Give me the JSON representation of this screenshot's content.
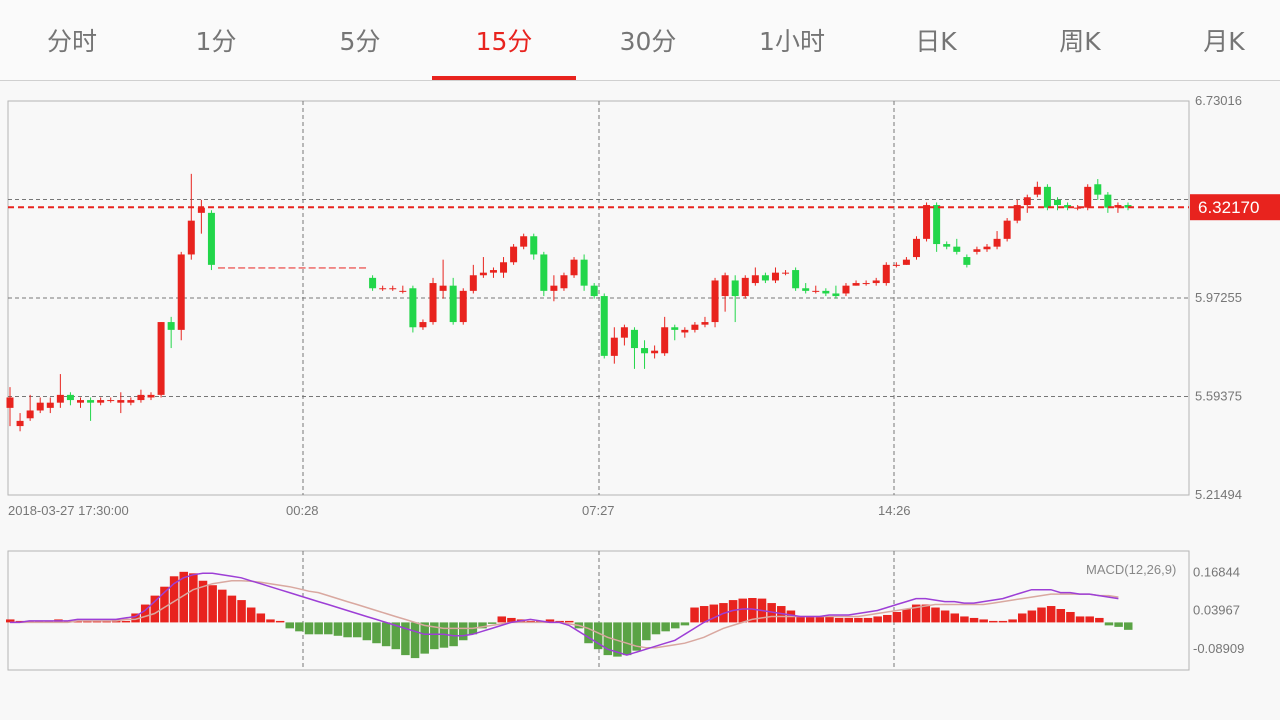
{
  "tabs": [
    {
      "label": "分时",
      "active": false
    },
    {
      "label": "1分",
      "active": false
    },
    {
      "label": "5分",
      "active": false
    },
    {
      "label": "15分",
      "active": true
    },
    {
      "label": "30分",
      "active": false
    },
    {
      "label": "1小时",
      "active": false
    },
    {
      "label": "日K",
      "active": false
    },
    {
      "label": "周K",
      "active": false
    },
    {
      "label": "月K",
      "active": false
    }
  ],
  "colors": {
    "up": "#e8231e",
    "down": "#22d64a",
    "macd_down": "#5aa345",
    "dif": "#9d3fd6",
    "dea": "#d9a8a0",
    "accent": "#e8231e"
  },
  "chart_data": [
    {
      "type": "candlestick",
      "ylim": [
        5.21494,
        6.73016
      ],
      "y_ticks": [
        "6.73016",
        "5.97255",
        "5.59375",
        "5.21494"
      ],
      "current_price_label": "6.32170",
      "current_price": 6.3217,
      "x_tick_labels": [
        "2018-03-27 17:30:00",
        "00:28",
        "07:27",
        "14:26"
      ],
      "candles": [
        [
          5.55,
          5.59,
          5.48,
          5.63
        ],
        [
          5.48,
          5.5,
          5.46,
          5.53
        ],
        [
          5.51,
          5.54,
          5.5,
          5.6
        ],
        [
          5.54,
          5.57,
          5.53,
          5.59
        ],
        [
          5.55,
          5.57,
          5.53,
          5.59
        ],
        [
          5.57,
          5.6,
          5.55,
          5.68
        ],
        [
          5.6,
          5.58,
          5.56,
          5.61
        ],
        [
          5.57,
          5.58,
          5.55,
          5.59
        ],
        [
          5.58,
          5.57,
          5.5,
          5.59
        ],
        [
          5.57,
          5.58,
          5.56,
          5.59
        ],
        [
          5.58,
          5.58,
          5.57,
          5.59
        ],
        [
          5.57,
          5.58,
          5.53,
          5.61
        ],
        [
          5.57,
          5.58,
          5.56,
          5.59
        ],
        [
          5.58,
          5.6,
          5.57,
          5.62
        ],
        [
          5.59,
          5.6,
          5.58,
          5.61
        ],
        [
          5.6,
          5.88,
          5.59,
          5.88
        ],
        [
          5.88,
          5.85,
          5.78,
          5.9
        ],
        [
          5.85,
          6.14,
          5.81,
          6.15
        ],
        [
          6.14,
          6.27,
          6.12,
          6.45
        ],
        [
          6.3,
          6.32,
          6.22,
          6.35
        ],
        [
          6.3,
          6.1,
          6.08,
          6.31
        ],
        [
          6.09,
          6.09,
          6.09,
          6.09
        ],
        [
          6.09,
          6.09,
          6.09,
          6.09
        ],
        [
          6.09,
          6.09,
          6.09,
          6.09
        ],
        [
          6.09,
          6.09,
          6.09,
          6.09
        ],
        [
          6.09,
          6.09,
          6.09,
          6.09
        ],
        [
          6.09,
          6.09,
          6.09,
          6.09
        ],
        [
          6.09,
          6.09,
          6.09,
          6.09
        ],
        [
          6.09,
          6.09,
          6.09,
          6.09
        ],
        [
          6.09,
          6.09,
          6.09,
          6.09
        ],
        [
          6.09,
          6.09,
          6.09,
          6.09
        ],
        [
          6.09,
          6.09,
          6.09,
          6.09
        ],
        [
          6.09,
          6.09,
          6.09,
          6.09
        ],
        [
          6.09,
          6.09,
          6.09,
          6.09
        ],
        [
          6.09,
          6.09,
          6.09,
          6.09
        ],
        [
          6.09,
          6.09,
          6.09,
          6.09
        ],
        [
          6.05,
          6.01,
          6.0,
          6.06
        ],
        [
          6.01,
          6.01,
          6.0,
          6.02
        ],
        [
          6.01,
          6.01,
          6.0,
          6.02
        ],
        [
          6.0,
          6.0,
          5.99,
          6.02
        ],
        [
          6.01,
          5.86,
          5.84,
          6.02
        ],
        [
          5.86,
          5.88,
          5.85,
          5.89
        ],
        [
          5.88,
          6.03,
          5.87,
          6.05
        ],
        [
          6.0,
          6.02,
          5.97,
          6.12
        ],
        [
          6.02,
          5.88,
          5.87,
          6.05
        ],
        [
          5.88,
          6.0,
          5.87,
          6.01
        ],
        [
          6.0,
          6.06,
          5.99,
          6.1
        ],
        [
          6.06,
          6.07,
          6.05,
          6.13
        ],
        [
          6.07,
          6.08,
          6.05,
          6.09
        ],
        [
          6.07,
          6.11,
          6.05,
          6.13
        ],
        [
          6.11,
          6.17,
          6.1,
          6.18
        ],
        [
          6.17,
          6.21,
          6.16,
          6.22
        ],
        [
          6.21,
          6.14,
          6.12,
          6.22
        ],
        [
          6.14,
          6.0,
          5.98,
          6.15
        ],
        [
          6.0,
          6.02,
          5.96,
          6.06
        ],
        [
          6.01,
          6.06,
          6.0,
          6.07
        ],
        [
          6.06,
          6.12,
          6.05,
          6.13
        ],
        [
          6.12,
          6.02,
          6.0,
          6.14
        ],
        [
          6.02,
          5.98,
          5.97,
          6.03
        ],
        [
          5.98,
          5.75,
          5.74,
          5.99
        ],
        [
          5.75,
          5.82,
          5.72,
          5.86
        ],
        [
          5.82,
          5.86,
          5.79,
          5.87
        ],
        [
          5.85,
          5.78,
          5.7,
          5.86
        ],
        [
          5.78,
          5.76,
          5.7,
          5.81
        ],
        [
          5.76,
          5.77,
          5.74,
          5.79
        ],
        [
          5.76,
          5.86,
          5.75,
          5.9
        ],
        [
          5.86,
          5.85,
          5.81,
          5.87
        ],
        [
          5.84,
          5.85,
          5.82,
          5.86
        ],
        [
          5.85,
          5.87,
          5.84,
          5.88
        ],
        [
          5.87,
          5.88,
          5.86,
          5.9
        ],
        [
          5.88,
          6.04,
          5.86,
          6.05
        ],
        [
          5.98,
          6.06,
          5.92,
          6.07
        ],
        [
          6.04,
          5.98,
          5.88,
          6.06
        ],
        [
          5.98,
          6.05,
          5.97,
          6.06
        ],
        [
          6.03,
          6.06,
          6.02,
          6.09
        ],
        [
          6.06,
          6.04,
          6.03,
          6.07
        ],
        [
          6.04,
          6.07,
          6.03,
          6.09
        ],
        [
          6.07,
          6.07,
          6.06,
          6.08
        ],
        [
          6.08,
          6.01,
          6.0,
          6.09
        ],
        [
          6.01,
          6.0,
          5.99,
          6.03
        ],
        [
          6.0,
          6.0,
          5.99,
          6.02
        ],
        [
          6.0,
          5.99,
          5.98,
          6.01
        ],
        [
          5.99,
          5.98,
          5.97,
          6.02
        ],
        [
          5.99,
          6.02,
          5.98,
          6.03
        ],
        [
          6.02,
          6.03,
          6.02,
          6.04
        ],
        [
          6.03,
          6.03,
          6.02,
          6.04
        ],
        [
          6.03,
          6.04,
          6.02,
          6.05
        ],
        [
          6.03,
          6.1,
          6.02,
          6.11
        ],
        [
          6.1,
          6.1,
          6.09,
          6.11
        ],
        [
          6.1,
          6.12,
          6.1,
          6.13
        ],
        [
          6.13,
          6.2,
          6.12,
          6.21
        ],
        [
          6.2,
          6.33,
          6.19,
          6.34
        ],
        [
          6.33,
          6.18,
          6.15,
          6.34
        ],
        [
          6.18,
          6.17,
          6.16,
          6.19
        ],
        [
          6.17,
          6.15,
          6.14,
          6.2
        ],
        [
          6.13,
          6.1,
          6.09,
          6.14
        ],
        [
          6.15,
          6.16,
          6.14,
          6.17
        ],
        [
          6.16,
          6.17,
          6.15,
          6.18
        ],
        [
          6.17,
          6.2,
          6.16,
          6.23
        ],
        [
          6.2,
          6.27,
          6.19,
          6.28
        ],
        [
          6.27,
          6.33,
          6.26,
          6.35
        ],
        [
          6.33,
          6.36,
          6.3,
          6.37
        ],
        [
          6.37,
          6.4,
          6.36,
          6.42
        ],
        [
          6.4,
          6.32,
          6.31,
          6.41
        ],
        [
          6.35,
          6.33,
          6.31,
          6.36
        ],
        [
          6.33,
          6.32,
          6.31,
          6.34
        ],
        [
          6.32,
          6.32,
          6.31,
          6.33
        ],
        [
          6.32,
          6.4,
          6.31,
          6.41
        ],
        [
          6.41,
          6.37,
          6.35,
          6.43
        ],
        [
          6.37,
          6.32,
          6.3,
          6.38
        ],
        [
          6.32,
          6.33,
          6.3,
          6.34
        ],
        [
          6.33,
          6.32,
          6.31,
          6.34
        ]
      ]
    },
    {
      "type": "bar",
      "title": "MACD(12,26,9)",
      "ylim": [
        -0.16,
        0.24
      ],
      "y_ticks": [
        "0.16844",
        "0.03967",
        "-0.08909"
      ],
      "histogram": [
        0.01,
        0.005,
        0.005,
        0.005,
        0.005,
        0.01,
        0.005,
        0.005,
        0.005,
        0.005,
        0.005,
        0.01,
        0.005,
        0.03,
        0.06,
        0.09,
        0.12,
        0.155,
        0.17,
        0.165,
        0.14,
        0.125,
        0.11,
        0.09,
        0.075,
        0.05,
        0.03,
        0.01,
        0.005,
        -0.02,
        -0.03,
        -0.04,
        -0.04,
        -0.04,
        -0.045,
        -0.05,
        -0.05,
        -0.06,
        -0.07,
        -0.08,
        -0.09,
        -0.11,
        -0.12,
        -0.105,
        -0.09,
        -0.085,
        -0.08,
        -0.06,
        -0.04,
        -0.02,
        -0.005,
        0.02,
        0.015,
        0.01,
        0.005,
        0.005,
        0.01,
        0.005,
        0.005,
        -0.02,
        -0.07,
        -0.09,
        -0.11,
        -0.115,
        -0.11,
        -0.095,
        -0.06,
        -0.04,
        -0.03,
        -0.02,
        -0.01,
        0.05,
        0.055,
        0.06,
        0.065,
        0.075,
        0.08,
        0.082,
        0.08,
        0.065,
        0.055,
        0.04,
        0.02,
        0.02,
        0.02,
        0.02,
        0.015,
        0.015,
        0.015,
        0.015,
        0.02,
        0.025,
        0.035,
        0.045,
        0.06,
        0.06,
        0.05,
        0.04,
        0.03,
        0.02,
        0.015,
        0.01,
        0.005,
        0.005,
        0.01,
        0.03,
        0.04,
        0.05,
        0.055,
        0.045,
        0.035,
        0.02,
        0.02,
        0.015,
        -0.01,
        -0.015,
        -0.025
      ],
      "dif": [
        0.0,
        0.0,
        0.005,
        0.005,
        0.005,
        0.005,
        0.005,
        0.01,
        0.01,
        0.01,
        0.01,
        0.01,
        0.015,
        0.02,
        0.04,
        0.07,
        0.1,
        0.13,
        0.15,
        0.16,
        0.165,
        0.165,
        0.16,
        0.155,
        0.15,
        0.14,
        0.13,
        0.12,
        0.11,
        0.1,
        0.09,
        0.08,
        0.07,
        0.06,
        0.05,
        0.04,
        0.03,
        0.02,
        0.01,
        0.0,
        -0.01,
        -0.02,
        -0.03,
        -0.04,
        -0.04,
        -0.04,
        -0.045,
        -0.045,
        -0.04,
        -0.03,
        -0.02,
        -0.01,
        0.0,
        0.005,
        0.01,
        0.005,
        0.0,
        0.0,
        -0.01,
        -0.03,
        -0.05,
        -0.07,
        -0.09,
        -0.1,
        -0.11,
        -0.1,
        -0.09,
        -0.08,
        -0.07,
        -0.06,
        -0.04,
        -0.02,
        0.0,
        0.015,
        0.03,
        0.04,
        0.045,
        0.045,
        0.04,
        0.035,
        0.03,
        0.025,
        0.02,
        0.02,
        0.02,
        0.025,
        0.025,
        0.025,
        0.03,
        0.035,
        0.04,
        0.05,
        0.06,
        0.07,
        0.08,
        0.08,
        0.075,
        0.07,
        0.07,
        0.065,
        0.065,
        0.07,
        0.075,
        0.08,
        0.09,
        0.1,
        0.11,
        0.11,
        0.11,
        0.1,
        0.1,
        0.095,
        0.095,
        0.09,
        0.085,
        0.08
      ],
      "dea": [
        0.0,
        0.0,
        0.0,
        0.0,
        0.0,
        0.0,
        0.0,
        0.005,
        0.005,
        0.005,
        0.005,
        0.005,
        0.01,
        0.01,
        0.02,
        0.03,
        0.05,
        0.07,
        0.09,
        0.11,
        0.12,
        0.13,
        0.135,
        0.14,
        0.14,
        0.138,
        0.135,
        0.13,
        0.125,
        0.12,
        0.113,
        0.105,
        0.1,
        0.09,
        0.08,
        0.07,
        0.06,
        0.05,
        0.04,
        0.03,
        0.02,
        0.01,
        0.0,
        -0.01,
        -0.015,
        -0.02,
        -0.02,
        -0.02,
        -0.02,
        -0.015,
        -0.01,
        -0.005,
        0.0,
        0.0,
        0.0,
        0.0,
        0.0,
        0.0,
        -0.005,
        -0.01,
        -0.02,
        -0.035,
        -0.05,
        -0.06,
        -0.07,
        -0.08,
        -0.085,
        -0.085,
        -0.08,
        -0.075,
        -0.07,
        -0.06,
        -0.05,
        -0.035,
        -0.02,
        -0.01,
        0.0,
        0.01,
        0.015,
        0.02,
        0.02,
        0.02,
        0.02,
        0.02,
        0.02,
        0.02,
        0.02,
        0.02,
        0.02,
        0.025,
        0.03,
        0.035,
        0.04,
        0.045,
        0.05,
        0.055,
        0.06,
        0.06,
        0.06,
        0.06,
        0.06,
        0.06,
        0.065,
        0.07,
        0.075,
        0.08,
        0.085,
        0.09,
        0.095,
        0.095,
        0.095,
        0.095,
        0.095,
        0.09,
        0.09,
        0.085
      ]
    }
  ]
}
